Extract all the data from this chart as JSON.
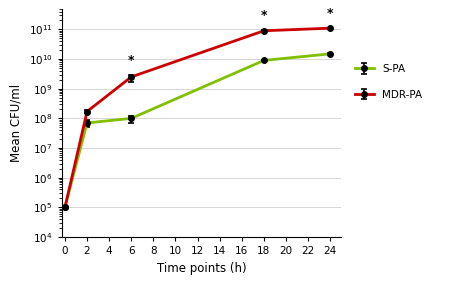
{
  "time_points": [
    0,
    2,
    6,
    18,
    24
  ],
  "s_pa_values": [
    100000.0,
    70000000.0,
    100000000.0,
    9000000000.0,
    15000000000.0
  ],
  "s_pa_errors_upper": [
    0,
    20000000.0,
    20000000.0,
    500000000.0,
    400000000.0
  ],
  "s_pa_errors_lower": [
    0,
    20000000.0,
    30000000.0,
    500000000.0,
    400000000.0
  ],
  "mdr_pa_values": [
    100000.0,
    170000000.0,
    2500000000.0,
    90000000000.0,
    110000000000.0
  ],
  "mdr_pa_errors_upper": [
    0,
    20000000.0,
    500000000.0,
    7000000000.0,
    5000000000.0
  ],
  "mdr_pa_errors_lower": [
    0,
    20000000.0,
    800000000.0,
    7000000000.0,
    5000000000.0
  ],
  "s_pa_color": "#80c000",
  "mdr_pa_color": "#cc0000",
  "marker_color": "black",
  "marker_size": 4,
  "line_width": 2.0,
  "xlabel": "Time points (h)",
  "ylabel": "Mean CFU/ml",
  "ylim_bottom": 10000.0,
  "ylim_top": 500000000000.0,
  "xlim_left": -0.3,
  "xlim_right": 25,
  "xticks": [
    0,
    2,
    4,
    6,
    8,
    10,
    12,
    14,
    16,
    18,
    20,
    22,
    24
  ],
  "significant_mdr_pa": [
    6,
    18,
    24
  ],
  "background_color": "#ffffff",
  "grid_color": "#d0d0d0",
  "legend_s_pa": "S-PA",
  "legend_mdr_pa": "MDR-PA"
}
